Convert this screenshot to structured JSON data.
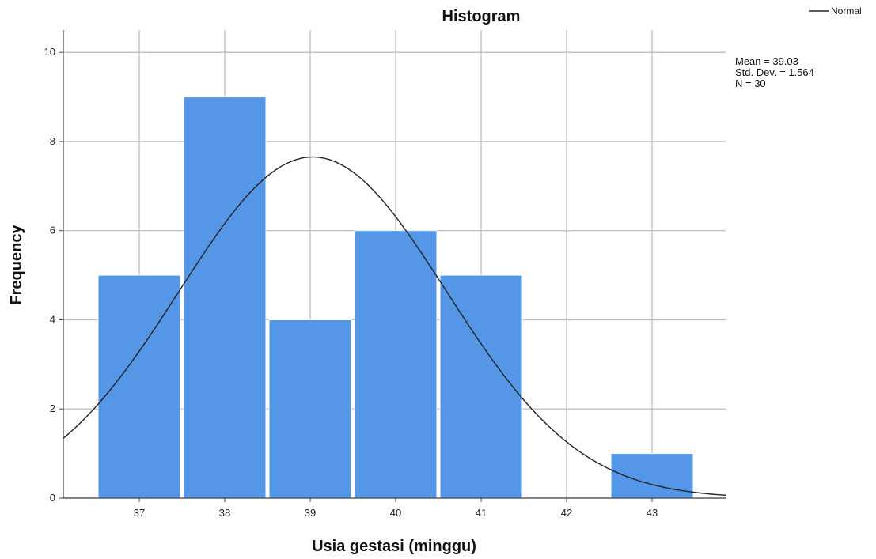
{
  "chart_data": {
    "type": "bar",
    "title": "Histogram",
    "xlabel": "Usia gestasi (minggu)",
    "ylabel": "Frequency",
    "categories": [
      "37",
      "38",
      "39",
      "40",
      "41",
      "42",
      "43"
    ],
    "values": [
      5,
      9,
      4,
      6,
      5,
      0,
      1
    ],
    "ylim": [
      0,
      10.5
    ],
    "yticks": [
      "0",
      "2",
      "4",
      "6",
      "8",
      "10"
    ],
    "grid": true,
    "bar_color": "#5596e6",
    "curve": {
      "name": "Normal",
      "mean": 39.03,
      "std": 1.564,
      "n": 30,
      "bin_width": 1,
      "color": "#222222"
    },
    "stats": [
      "Mean = 39.03",
      "Std. Dev. = 1.564",
      "N = 30"
    ],
    "legend": {
      "placement": "top-right",
      "entries": [
        "Normal"
      ]
    }
  }
}
